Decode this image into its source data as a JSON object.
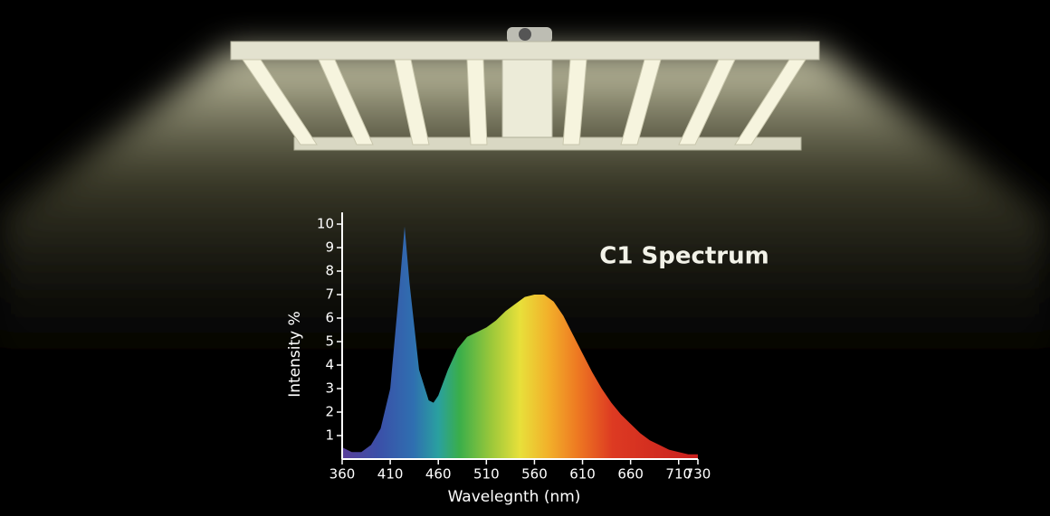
{
  "chart_data": {
    "type": "area",
    "title": "C1 Spectrum",
    "x_label": "Wavelegnth (nm)",
    "y_label": "Intensity %",
    "x": [
      360,
      370,
      380,
      390,
      400,
      410,
      420,
      425,
      430,
      440,
      450,
      455,
      460,
      470,
      480,
      490,
      500,
      510,
      520,
      530,
      540,
      550,
      560,
      570,
      580,
      590,
      600,
      610,
      620,
      630,
      640,
      650,
      660,
      670,
      680,
      690,
      700,
      710,
      720,
      730
    ],
    "values": [
      0.5,
      0.3,
      0.3,
      0.6,
      1.3,
      3.0,
      7.5,
      9.9,
      7.5,
      3.8,
      2.5,
      2.4,
      2.7,
      3.8,
      4.7,
      5.2,
      5.4,
      5.6,
      5.9,
      6.3,
      6.6,
      6.9,
      7.0,
      7.0,
      6.7,
      6.1,
      5.3,
      4.5,
      3.7,
      3.0,
      2.4,
      1.9,
      1.5,
      1.1,
      0.8,
      0.6,
      0.4,
      0.3,
      0.2,
      0.2
    ],
    "xlim": [
      360,
      730
    ],
    "xticks": [
      360,
      410,
      460,
      510,
      560,
      610,
      660,
      710,
      730
    ],
    "ylim": [
      0,
      10.5
    ],
    "yticks": [
      1,
      2,
      3,
      4,
      5,
      6,
      7,
      8,
      9,
      10
    ]
  }
}
